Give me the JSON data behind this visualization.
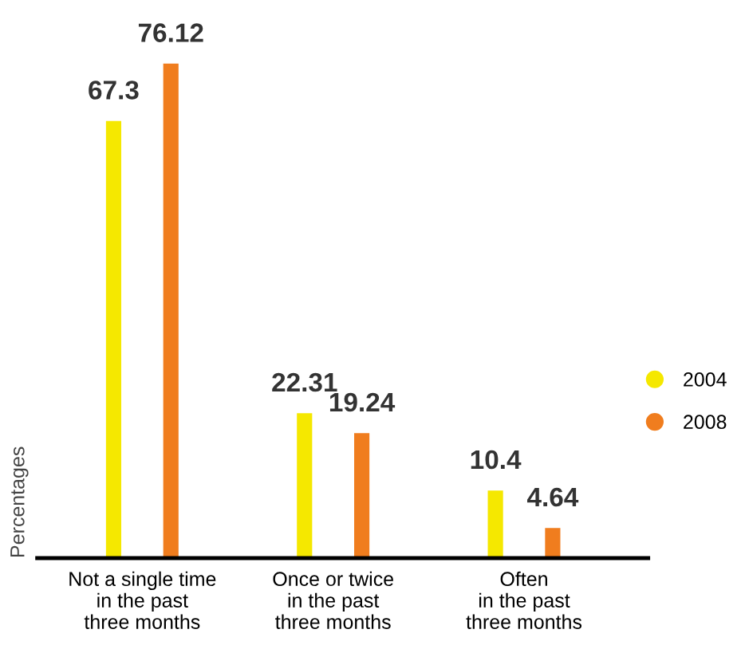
{
  "chart_data": {
    "type": "bar",
    "ylabel": "Percentages",
    "categories": [
      "Not a single time\nin the past\nthree months",
      "Once or twice\nin the past\nthree months",
      "Often\nin the past\nthree months"
    ],
    "series": [
      {
        "name": "2004",
        "color": "#f5e800",
        "values": [
          67.3,
          22.31,
          10.4
        ]
      },
      {
        "name": "2008",
        "color": "#f07d1e",
        "values": [
          76.12,
          19.24,
          4.64
        ]
      }
    ],
    "data_labels": true,
    "legend": "right",
    "grid": false
  }
}
